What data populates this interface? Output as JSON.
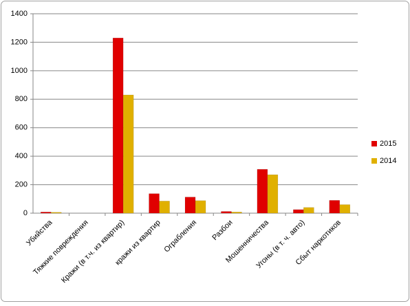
{
  "chart_data": {
    "type": "bar",
    "categories": [
      "Убийства",
      "Тяжкие повреждения",
      "Кражи (в т.ч.  из квартир)",
      "кражи из квартир",
      "Ограбления",
      "Разбои",
      "Мошенничества",
      "Угоны (в т. ч. авто)",
      "Сбыт наркотиков"
    ],
    "series": [
      {
        "name": "2015",
        "color": "#e00000",
        "values": [
          8,
          0,
          1230,
          137,
          113,
          12,
          308,
          25,
          90
        ]
      },
      {
        "name": "2014",
        "color": "#e0b000",
        "values": [
          6,
          0,
          830,
          85,
          88,
          8,
          270,
          40,
          60
        ]
      }
    ],
    "ylim": [
      0,
      1400
    ],
    "yticks": [
      0,
      200,
      400,
      600,
      800,
      1000,
      1200,
      1400
    ],
    "grid": true,
    "legend": "right"
  }
}
